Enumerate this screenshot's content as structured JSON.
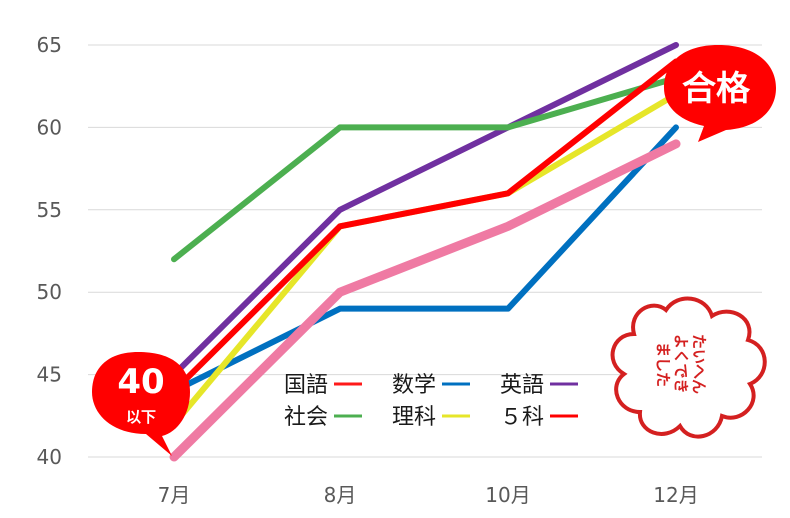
{
  "chart_data": {
    "type": "line",
    "categories": [
      "7月",
      "8月",
      "10月",
      "12月"
    ],
    "ylim": [
      40,
      65
    ],
    "yticks": [
      "40",
      "45",
      "50",
      "55",
      "60",
      "65"
    ],
    "grid": true,
    "legend_position": "bottom-center (inside plot)",
    "series": [
      {
        "name": "国語",
        "color": "#ff1a1a",
        "values": [
          null,
          null,
          null,
          null
        ]
      },
      {
        "name": "数学",
        "color": "#0070c0",
        "values": [
          44,
          49,
          49,
          60
        ]
      },
      {
        "name": "英語",
        "color": "#7030a0",
        "values": [
          45,
          55,
          60,
          65
        ]
      },
      {
        "name": "社会",
        "color": "#4caf50",
        "values": [
          52,
          60,
          60,
          63
        ]
      },
      {
        "name": "理科",
        "color": "#e6e629",
        "values": [
          42,
          54,
          56,
          62
        ]
      },
      {
        "name": "５科",
        "color": "#ff0000",
        "values": [
          44,
          54,
          56,
          64
        ]
      },
      {
        "name": "",
        "color": "#ef7aa3",
        "values": [
          40,
          50,
          54,
          59
        ]
      }
    ],
    "annotations": {
      "start_bubble": {
        "value": "40",
        "sub": "以下",
        "color": "#ff0000"
      },
      "end_bubble": {
        "value": "合格",
        "color": "#ff0000"
      },
      "stamp": {
        "lines": [
          "たいへん",
          "よくでき",
          "ました"
        ],
        "color": "#d42020"
      }
    }
  }
}
